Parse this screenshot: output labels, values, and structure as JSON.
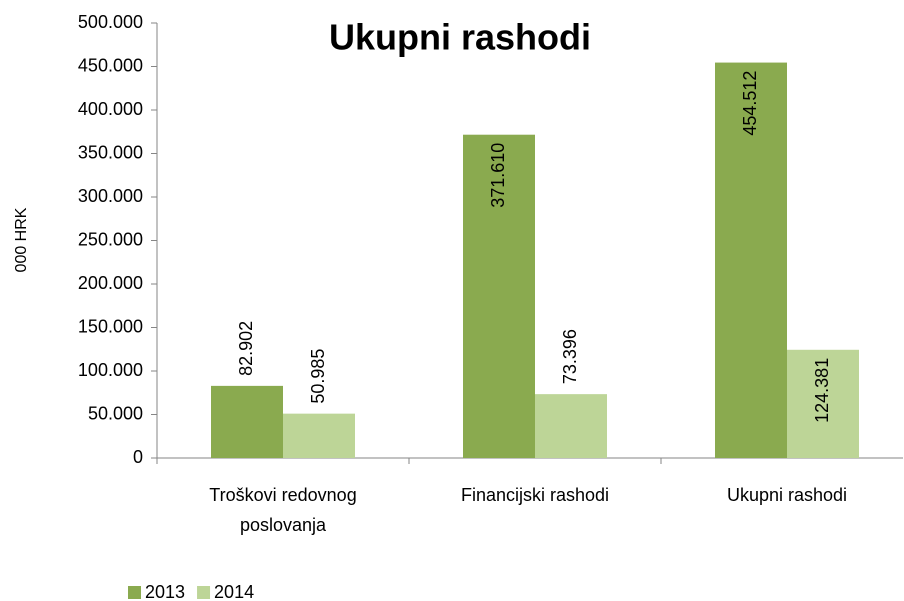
{
  "chart_data": {
    "type": "bar",
    "title": "Ukupni rashodi",
    "ylabel": "000 HRK",
    "categories": [
      "Troškovi redovnog poslovanja",
      "Financijski rashodi",
      "Ukupni rashodi"
    ],
    "series": [
      {
        "name": "2013",
        "color": "#8aaa4f",
        "values": [
          82902,
          371610,
          454512
        ],
        "value_labels": [
          "82.902",
          "371.610",
          "454.512"
        ]
      },
      {
        "name": "2014",
        "color": "#bdd597",
        "values": [
          50985,
          73396,
          124381
        ],
        "value_labels": [
          "50.985",
          "73.396",
          "124.381"
        ]
      }
    ],
    "ylim": [
      0,
      500000
    ],
    "yticks": [
      0,
      {
        "value": 50000,
        "label": "50.000"
      },
      {
        "value": 100000,
        "label": "100.000"
      },
      {
        "value": 150000,
        "label": "150.000"
      },
      {
        "value": 200000,
        "label": "200.000"
      },
      {
        "value": 250000,
        "label": "250.000"
      },
      {
        "value": 300000,
        "label": "300.000"
      },
      {
        "value": 350000,
        "label": "350.000"
      },
      {
        "value": 400000,
        "label": "400.000"
      },
      {
        "value": 450000,
        "label": "450.000"
      },
      {
        "value": 500000,
        "label": "500.000"
      }
    ],
    "grid": false,
    "legend": "bottom-left"
  }
}
